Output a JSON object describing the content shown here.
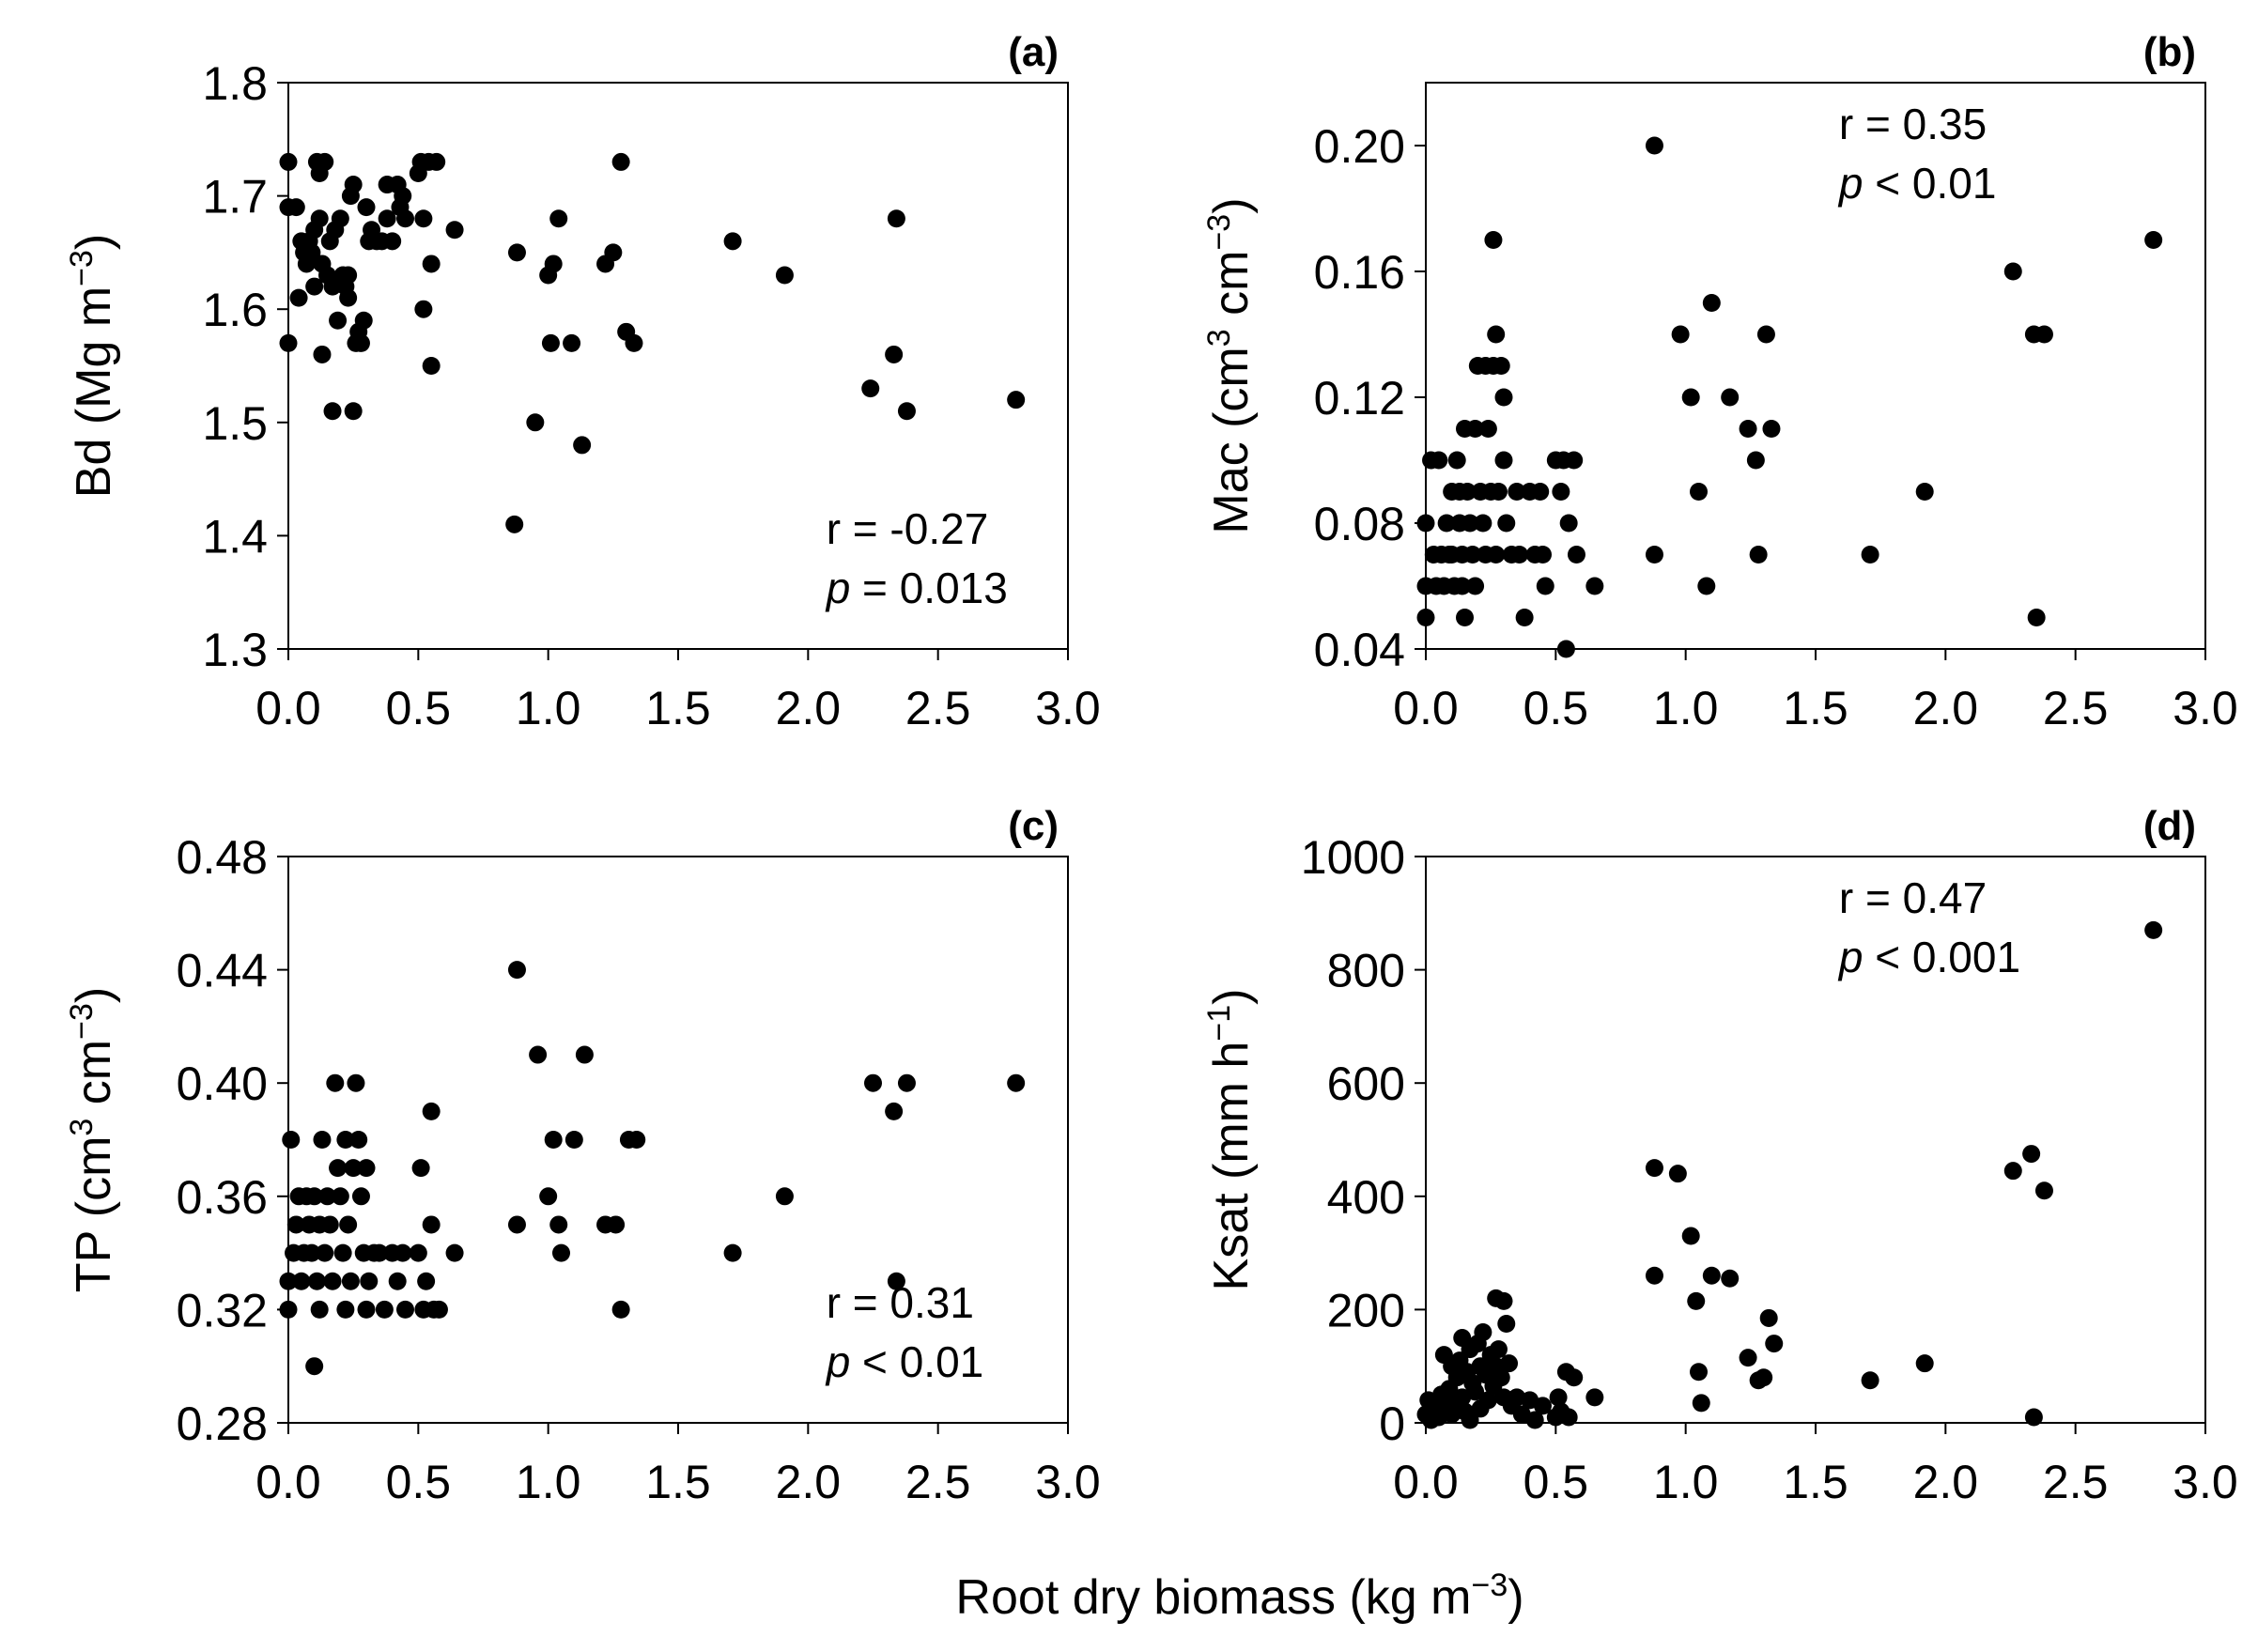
{
  "figure": {
    "common_xlabel": {
      "pre": "Root dry biomass (kg m",
      "sup": "−3",
      "post": ")"
    }
  },
  "chart_data": [
    {
      "type": "scatter",
      "panel": "(a)",
      "ylabel": {
        "pre": "Bd (Mg m",
        "sup": "−3",
        "post": ")"
      },
      "xlim": [
        0,
        3
      ],
      "ylim": [
        1.3,
        1.8
      ],
      "xticks": [
        "0.0",
        "0.5",
        "1.0",
        "1.5",
        "2.0",
        "2.5",
        "3.0"
      ],
      "yticks": [
        "1.3",
        "1.4",
        "1.5",
        "1.6",
        "1.7",
        "1.8"
      ],
      "annotation": {
        "r": "r = -0.27",
        "p_symbol": "p",
        "p_rest": " = 0.013",
        "position": "bottom-right"
      },
      "points": [
        [
          0.0,
          1.73
        ],
        [
          0.0,
          1.69
        ],
        [
          0.0,
          1.57
        ],
        [
          0.03,
          1.69
        ],
        [
          0.04,
          1.61
        ],
        [
          0.05,
          1.66
        ],
        [
          0.06,
          1.65
        ],
        [
          0.07,
          1.64
        ],
        [
          0.08,
          1.66
        ],
        [
          0.09,
          1.65
        ],
        [
          0.1,
          1.67
        ],
        [
          0.1,
          1.62
        ],
        [
          0.11,
          1.73
        ],
        [
          0.12,
          1.72
        ],
        [
          0.12,
          1.68
        ],
        [
          0.13,
          1.56
        ],
        [
          0.13,
          1.64
        ],
        [
          0.14,
          1.73
        ],
        [
          0.15,
          1.63
        ],
        [
          0.16,
          1.66
        ],
        [
          0.17,
          1.51
        ],
        [
          0.17,
          1.62
        ],
        [
          0.18,
          1.67
        ],
        [
          0.19,
          1.59
        ],
        [
          0.2,
          1.68
        ],
        [
          0.21,
          1.63
        ],
        [
          0.22,
          1.62
        ],
        [
          0.23,
          1.63
        ],
        [
          0.23,
          1.61
        ],
        [
          0.24,
          1.7
        ],
        [
          0.25,
          1.71
        ],
        [
          0.25,
          1.51
        ],
        [
          0.26,
          1.57
        ],
        [
          0.27,
          1.58
        ],
        [
          0.28,
          1.57
        ],
        [
          0.29,
          1.59
        ],
        [
          0.3,
          1.69
        ],
        [
          0.31,
          1.66
        ],
        [
          0.32,
          1.67
        ],
        [
          0.34,
          1.66
        ],
        [
          0.36,
          1.66
        ],
        [
          0.38,
          1.71
        ],
        [
          0.38,
          1.68
        ],
        [
          0.4,
          1.66
        ],
        [
          0.42,
          1.71
        ],
        [
          0.43,
          1.69
        ],
        [
          0.44,
          1.7
        ],
        [
          0.45,
          1.68
        ],
        [
          0.5,
          1.72
        ],
        [
          0.51,
          1.73
        ],
        [
          0.52,
          1.68
        ],
        [
          0.52,
          1.6
        ],
        [
          0.54,
          1.73
        ],
        [
          0.55,
          1.64
        ],
        [
          0.55,
          1.55
        ],
        [
          0.57,
          1.73
        ],
        [
          0.64,
          1.67
        ],
        [
          0.87,
          1.41
        ],
        [
          0.88,
          1.65
        ],
        [
          0.95,
          1.5
        ],
        [
          1.0,
          1.63
        ],
        [
          1.01,
          1.57
        ],
        [
          1.02,
          1.64
        ],
        [
          1.04,
          1.68
        ],
        [
          1.09,
          1.57
        ],
        [
          1.13,
          1.48
        ],
        [
          1.22,
          1.64
        ],
        [
          1.25,
          1.65
        ],
        [
          1.28,
          1.73
        ],
        [
          1.3,
          1.58
        ],
        [
          1.33,
          1.57
        ],
        [
          1.71,
          1.66
        ],
        [
          1.91,
          1.63
        ],
        [
          2.24,
          1.53
        ],
        [
          2.33,
          1.56
        ],
        [
          2.34,
          1.68
        ],
        [
          2.38,
          1.51
        ],
        [
          2.8,
          1.52
        ]
      ]
    },
    {
      "type": "scatter",
      "panel": "(b)",
      "ylabel": {
        "pre": "Mac (cm",
        "sup": "3",
        "mid": " cm",
        "sup2": "−3",
        "post": ")"
      },
      "xlim": [
        0,
        3
      ],
      "ylim": [
        0.04,
        0.22
      ],
      "xticks": [
        "0.0",
        "0.5",
        "1.0",
        "1.5",
        "2.0",
        "2.5",
        "3.0"
      ],
      "yticks": [
        "0.04",
        "0.08",
        "0.12",
        "0.16",
        "0.20"
      ],
      "annotation": {
        "r": "r = 0.35",
        "p_symbol": "p",
        "p_rest": " < 0.01",
        "position": "top-middle"
      },
      "points": [
        [
          0.0,
          0.05
        ],
        [
          0.0,
          0.06
        ],
        [
          0.0,
          0.08
        ],
        [
          0.02,
          0.1
        ],
        [
          0.03,
          0.07
        ],
        [
          0.04,
          0.06
        ],
        [
          0.05,
          0.1
        ],
        [
          0.06,
          0.07
        ],
        [
          0.07,
          0.06
        ],
        [
          0.08,
          0.08
        ],
        [
          0.09,
          0.07
        ],
        [
          0.1,
          0.09
        ],
        [
          0.1,
          0.07
        ],
        [
          0.11,
          0.06
        ],
        [
          0.12,
          0.1
        ],
        [
          0.13,
          0.09
        ],
        [
          0.13,
          0.08
        ],
        [
          0.14,
          0.07
        ],
        [
          0.14,
          0.06
        ],
        [
          0.15,
          0.11
        ],
        [
          0.15,
          0.05
        ],
        [
          0.16,
          0.09
        ],
        [
          0.17,
          0.08
        ],
        [
          0.18,
          0.07
        ],
        [
          0.19,
          0.11
        ],
        [
          0.19,
          0.06
        ],
        [
          0.2,
          0.13
        ],
        [
          0.21,
          0.09
        ],
        [
          0.22,
          0.08
        ],
        [
          0.23,
          0.07
        ],
        [
          0.23,
          0.13
        ],
        [
          0.24,
          0.11
        ],
        [
          0.25,
          0.09
        ],
        [
          0.26,
          0.13
        ],
        [
          0.26,
          0.17
        ],
        [
          0.27,
          0.14
        ],
        [
          0.27,
          0.07
        ],
        [
          0.28,
          0.09
        ],
        [
          0.29,
          0.13
        ],
        [
          0.3,
          0.12
        ],
        [
          0.3,
          0.1
        ],
        [
          0.31,
          0.08
        ],
        [
          0.33,
          0.07
        ],
        [
          0.35,
          0.09
        ],
        [
          0.36,
          0.07
        ],
        [
          0.38,
          0.05
        ],
        [
          0.4,
          0.09
        ],
        [
          0.42,
          0.07
        ],
        [
          0.44,
          0.09
        ],
        [
          0.45,
          0.07
        ],
        [
          0.46,
          0.06
        ],
        [
          0.5,
          0.1
        ],
        [
          0.52,
          0.09
        ],
        [
          0.53,
          0.1
        ],
        [
          0.54,
          0.04
        ],
        [
          0.55,
          0.08
        ],
        [
          0.57,
          0.1
        ],
        [
          0.58,
          0.07
        ],
        [
          0.65,
          0.06
        ],
        [
          0.88,
          0.2
        ],
        [
          0.88,
          0.07
        ],
        [
          0.98,
          0.14
        ],
        [
          1.02,
          0.12
        ],
        [
          1.05,
          0.09
        ],
        [
          1.08,
          0.06
        ],
        [
          1.1,
          0.15
        ],
        [
          1.17,
          0.12
        ],
        [
          1.24,
          0.11
        ],
        [
          1.27,
          0.1
        ],
        [
          1.28,
          0.07
        ],
        [
          1.31,
          0.14
        ],
        [
          1.33,
          0.11
        ],
        [
          1.71,
          0.07
        ],
        [
          1.92,
          0.09
        ],
        [
          2.26,
          0.16
        ],
        [
          2.34,
          0.14
        ],
        [
          2.35,
          0.05
        ],
        [
          2.38,
          0.14
        ],
        [
          2.8,
          0.17
        ]
      ]
    },
    {
      "type": "scatter",
      "panel": "(c)",
      "ylabel": {
        "pre": "TP (cm",
        "sup": "3",
        "mid": " cm",
        "sup2": "−3",
        "post": ")"
      },
      "xlim": [
        0,
        3
      ],
      "ylim": [
        0.28,
        0.48
      ],
      "xticks": [
        "0.0",
        "0.5",
        "1.0",
        "1.5",
        "2.0",
        "2.5",
        "3.0"
      ],
      "yticks": [
        "0.28",
        "0.32",
        "0.36",
        "0.40",
        "0.44",
        "0.48"
      ],
      "annotation": {
        "r": "r = 0.31",
        "p_symbol": "p",
        "p_rest": " < 0.01",
        "position": "bottom-right"
      },
      "points": [
        [
          0.0,
          0.32
        ],
        [
          0.0,
          0.33
        ],
        [
          0.01,
          0.38
        ],
        [
          0.02,
          0.34
        ],
        [
          0.03,
          0.35
        ],
        [
          0.04,
          0.36
        ],
        [
          0.05,
          0.33
        ],
        [
          0.06,
          0.34
        ],
        [
          0.07,
          0.36
        ],
        [
          0.08,
          0.35
        ],
        [
          0.09,
          0.34
        ],
        [
          0.1,
          0.3
        ],
        [
          0.1,
          0.36
        ],
        [
          0.11,
          0.33
        ],
        [
          0.12,
          0.35
        ],
        [
          0.12,
          0.32
        ],
        [
          0.13,
          0.38
        ],
        [
          0.14,
          0.34
        ],
        [
          0.15,
          0.36
        ],
        [
          0.16,
          0.35
        ],
        [
          0.17,
          0.33
        ],
        [
          0.18,
          0.4
        ],
        [
          0.19,
          0.37
        ],
        [
          0.2,
          0.36
        ],
        [
          0.21,
          0.34
        ],
        [
          0.22,
          0.32
        ],
        [
          0.22,
          0.38
        ],
        [
          0.23,
          0.35
        ],
        [
          0.24,
          0.33
        ],
        [
          0.25,
          0.37
        ],
        [
          0.26,
          0.4
        ],
        [
          0.27,
          0.38
        ],
        [
          0.28,
          0.36
        ],
        [
          0.29,
          0.34
        ],
        [
          0.3,
          0.32
        ],
        [
          0.3,
          0.37
        ],
        [
          0.31,
          0.33
        ],
        [
          0.33,
          0.34
        ],
        [
          0.35,
          0.34
        ],
        [
          0.37,
          0.32
        ],
        [
          0.4,
          0.34
        ],
        [
          0.42,
          0.33
        ],
        [
          0.44,
          0.34
        ],
        [
          0.45,
          0.32
        ],
        [
          0.5,
          0.34
        ],
        [
          0.51,
          0.37
        ],
        [
          0.52,
          0.32
        ],
        [
          0.53,
          0.33
        ],
        [
          0.55,
          0.39
        ],
        [
          0.55,
          0.35
        ],
        [
          0.56,
          0.32
        ],
        [
          0.58,
          0.32
        ],
        [
          0.64,
          0.34
        ],
        [
          0.88,
          0.44
        ],
        [
          0.88,
          0.35
        ],
        [
          0.96,
          0.41
        ],
        [
          1.0,
          0.36
        ],
        [
          1.02,
          0.38
        ],
        [
          1.04,
          0.35
        ],
        [
          1.05,
          0.34
        ],
        [
          1.1,
          0.38
        ],
        [
          1.14,
          0.41
        ],
        [
          1.22,
          0.35
        ],
        [
          1.26,
          0.35
        ],
        [
          1.28,
          0.32
        ],
        [
          1.31,
          0.38
        ],
        [
          1.34,
          0.38
        ],
        [
          1.71,
          0.34
        ],
        [
          1.91,
          0.36
        ],
        [
          2.25,
          0.4
        ],
        [
          2.33,
          0.39
        ],
        [
          2.34,
          0.33
        ],
        [
          2.38,
          0.4
        ],
        [
          2.8,
          0.4
        ]
      ]
    },
    {
      "type": "scatter",
      "panel": "(d)",
      "ylabel": {
        "pre": "Ksat (mm h",
        "sup": "−1",
        "post": ")"
      },
      "xlim": [
        0,
        3
      ],
      "ylim": [
        0,
        1000
      ],
      "xticks": [
        "0.0",
        "0.5",
        "1.0",
        "1.5",
        "2.0",
        "2.5",
        "3.0"
      ],
      "yticks": [
        "0",
        "200",
        "400",
        "600",
        "800",
        "1000"
      ],
      "annotation": {
        "r": "r = 0.47",
        "p_symbol": "p",
        "p_rest": " < 0.001",
        "position": "top-middle"
      },
      "points": [
        [
          0.0,
          15
        ],
        [
          0.01,
          40
        ],
        [
          0.02,
          5
        ],
        [
          0.03,
          20
        ],
        [
          0.04,
          30
        ],
        [
          0.05,
          10
        ],
        [
          0.06,
          50
        ],
        [
          0.07,
          120
        ],
        [
          0.08,
          25
        ],
        [
          0.09,
          60
        ],
        [
          0.1,
          100
        ],
        [
          0.1,
          15
        ],
        [
          0.11,
          35
        ],
        [
          0.12,
          80
        ],
        [
          0.13,
          110
        ],
        [
          0.14,
          150
        ],
        [
          0.14,
          45
        ],
        [
          0.15,
          20
        ],
        [
          0.16,
          90
        ],
        [
          0.17,
          130
        ],
        [
          0.17,
          5
        ],
        [
          0.18,
          70
        ],
        [
          0.19,
          55
        ],
        [
          0.2,
          140
        ],
        [
          0.21,
          100
        ],
        [
          0.21,
          25
        ],
        [
          0.22,
          160
        ],
        [
          0.23,
          85
        ],
        [
          0.24,
          40
        ],
        [
          0.25,
          120
        ],
        [
          0.26,
          65
        ],
        [
          0.27,
          100
        ],
        [
          0.27,
          220
        ],
        [
          0.28,
          130
        ],
        [
          0.29,
          80
        ],
        [
          0.3,
          215
        ],
        [
          0.3,
          45
        ],
        [
          0.31,
          175
        ],
        [
          0.32,
          105
        ],
        [
          0.33,
          30
        ],
        [
          0.35,
          45
        ],
        [
          0.37,
          15
        ],
        [
          0.4,
          40
        ],
        [
          0.42,
          5
        ],
        [
          0.45,
          30
        ],
        [
          0.5,
          10
        ],
        [
          0.51,
          45
        ],
        [
          0.52,
          20
        ],
        [
          0.54,
          90
        ],
        [
          0.55,
          10
        ],
        [
          0.57,
          80
        ],
        [
          0.65,
          45
        ],
        [
          0.88,
          450
        ],
        [
          0.88,
          260
        ],
        [
          0.97,
          440
        ],
        [
          1.02,
          330
        ],
        [
          1.04,
          215
        ],
        [
          1.05,
          90
        ],
        [
          1.06,
          35
        ],
        [
          1.1,
          260
        ],
        [
          1.17,
          255
        ],
        [
          1.24,
          115
        ],
        [
          1.28,
          75
        ],
        [
          1.3,
          80
        ],
        [
          1.32,
          185
        ],
        [
          1.34,
          140
        ],
        [
          1.71,
          75
        ],
        [
          1.92,
          105
        ],
        [
          2.26,
          445
        ],
        [
          2.33,
          475
        ],
        [
          2.34,
          10
        ],
        [
          2.38,
          410
        ],
        [
          2.8,
          870
        ]
      ]
    }
  ]
}
